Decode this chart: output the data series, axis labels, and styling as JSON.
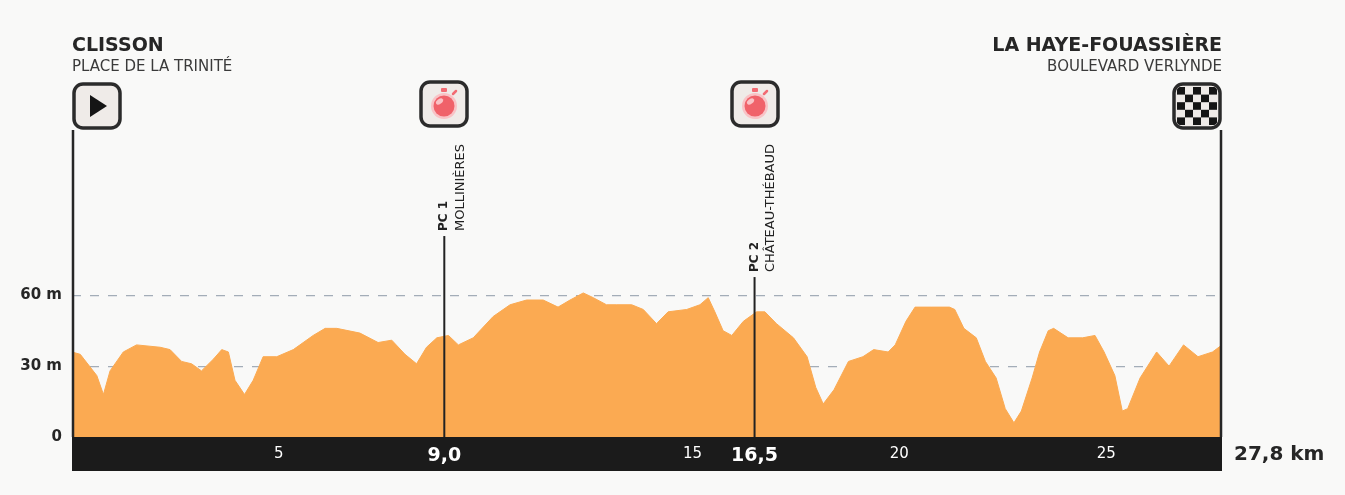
{
  "chart_data": {
    "type": "area",
    "xlabel": "27,8 km",
    "color": "#fbaa52",
    "x": [
      0,
      0.2,
      0.6,
      0.76,
      0.92,
      1.24,
      1.56,
      2.13,
      2.37,
      2.65,
      2.89,
      3.13,
      3.42,
      3.62,
      3.78,
      3.94,
      4.17,
      4.38,
      4.62,
      4.95,
      5.35,
      5.83,
      6.12,
      6.4,
      6.96,
      7.4,
      7.73,
      8.05,
      8.33,
      8.57,
      8.82,
      9.1,
      9.34,
      9.7,
      10.18,
      10.59,
      10.99,
      11.39,
      11.75,
      12.04,
      12.36,
      12.6,
      12.92,
      13.17,
      13.53,
      13.81,
      14.13,
      14.41,
      14.86,
      15.18,
      15.38,
      15.54,
      15.74,
      15.95,
      16.23,
      16.55,
      16.75,
      17.03,
      17.44,
      17.77,
      17.98,
      18.16,
      18.42,
      18.77,
      19.12,
      19.38,
      19.73,
      19.9,
      20.16,
      20.38,
      20.77,
      21.21,
      21.34,
      21.56,
      21.86,
      22.08,
      22.34,
      22.56,
      22.77,
      22.95,
      23.21,
      23.39,
      23.6,
      23.73,
      24.08,
      24.43,
      24.73,
      24.95,
      25.21,
      25.39,
      25.52,
      25.82,
      26.22,
      26.52,
      26.87,
      27.22,
      27.57,
      27.8
    ],
    "values": [
      36,
      35,
      26,
      18,
      28,
      36,
      39,
      38,
      37,
      32,
      31,
      28,
      33,
      37,
      36,
      24,
      18,
      24,
      34,
      34,
      37,
      43,
      46,
      46,
      44,
      40,
      41,
      35,
      31,
      38,
      42,
      43,
      39,
      42,
      51,
      56,
      58,
      58,
      55,
      58,
      61,
      59,
      56,
      56,
      56,
      54,
      48,
      53,
      54,
      56,
      59,
      53,
      45,
      43,
      49,
      53,
      53,
      48,
      42,
      34,
      21,
      14,
      20,
      32,
      34,
      37,
      36,
      39,
      49,
      55,
      55,
      55,
      54,
      46,
      42,
      32,
      25,
      12,
      6,
      11,
      25,
      36,
      45,
      46,
      42,
      42,
      43,
      36,
      26,
      11,
      12,
      25,
      36,
      30,
      39,
      34,
      36,
      39
    ],
    "xlim": [
      0,
      27.8
    ],
    "ylim": [
      0,
      130
    ],
    "xticks": [
      5,
      {
        "value": 9,
        "label": "9,0"
      },
      15,
      {
        "value": 16.5,
        "label": "16,5"
      },
      20,
      25
    ],
    "yticks": [
      0,
      {
        "value": 30,
        "label": "30 m"
      },
      {
        "value": 60,
        "label": "60 m"
      }
    ],
    "grid": "y",
    "ref_lines": [
      {
        "axis": "x",
        "value": 9,
        "label": "PC 1\nMOLLINIÈRES",
        "color": "#222222"
      },
      {
        "axis": "x",
        "value": 16.5,
        "label": "PC 2\nCHÂTEAU-THÉBAUD",
        "color": "#222222"
      }
    ],
    "annotations": [
      "CLISSON\nPLACE DE LA TRINITÉ",
      "LA HAYE-FOUASSIÈRE\nBOULEVARD VERLYNDE"
    ]
  }
}
